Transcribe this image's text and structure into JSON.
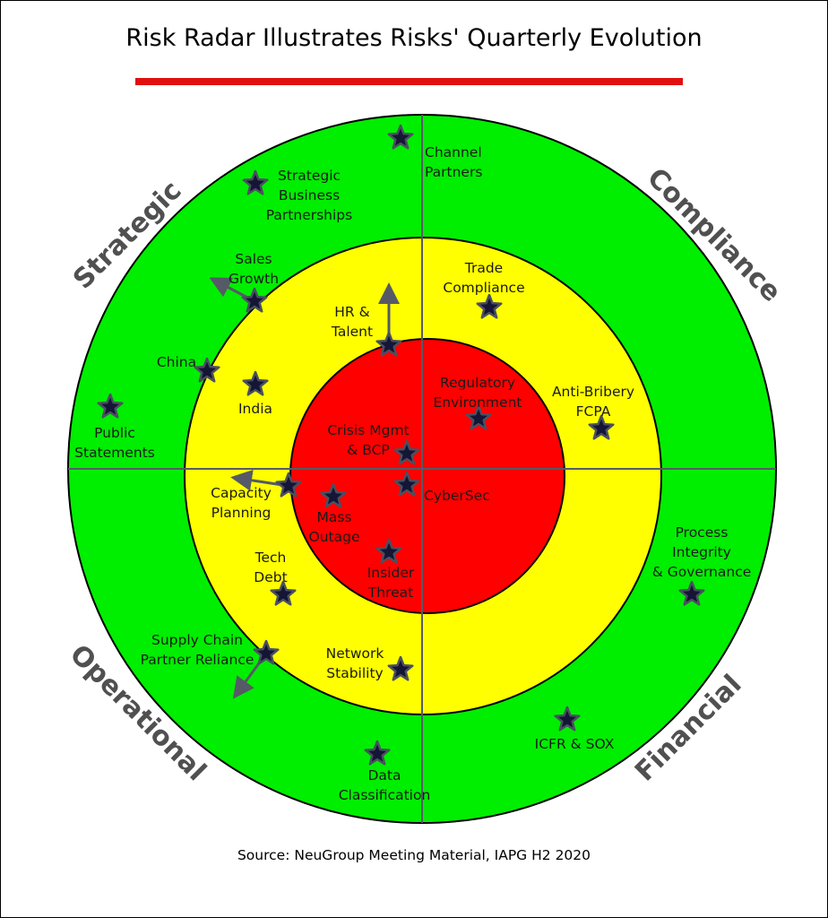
{
  "title": "Risk Radar Illustrates Risks' Quarterly Evolution",
  "source": "Source: NeuGroup Meeting Material, IAPG H2 2020",
  "colors": {
    "outer_ring": "#00ee00",
    "middle_ring": "#ffff00",
    "core": "#ff0000",
    "title_bar": "#e01010",
    "quadrant_label": "#505050",
    "star": "#151535",
    "divider": "#555a66"
  },
  "quadrants": [
    "Strategic",
    "Compliance",
    "Operational",
    "Financial"
  ],
  "risks": [
    {
      "name": [
        "Channel",
        "Partners"
      ],
      "zone": "green",
      "quadrant": "Strategic/Compliance"
    },
    {
      "name": [
        "Strategic",
        "Business",
        "Partnerships"
      ],
      "zone": "green",
      "quadrant": "Strategic"
    },
    {
      "name": [
        "Sales",
        "Growth"
      ],
      "zone": "green/yellow boundary",
      "quadrant": "Strategic",
      "trend": "outward"
    },
    {
      "name": [
        "HR &",
        "Talent"
      ],
      "zone": "yellow/red boundary",
      "quadrant": "Strategic",
      "trend": "outward"
    },
    {
      "name": [
        "China"
      ],
      "zone": "green/yellow boundary",
      "quadrant": "Strategic"
    },
    {
      "name": [
        "India"
      ],
      "zone": "yellow",
      "quadrant": "Strategic"
    },
    {
      "name": [
        "Public",
        "Statements"
      ],
      "zone": "green",
      "quadrant": "Strategic"
    },
    {
      "name": [
        "Trade",
        "Compliance"
      ],
      "zone": "yellow",
      "quadrant": "Compliance"
    },
    {
      "name": [
        "Regulatory",
        "Environment"
      ],
      "zone": "red",
      "quadrant": "Compliance"
    },
    {
      "name": [
        "Anti-Bribery",
        "FCPA"
      ],
      "zone": "yellow",
      "quadrant": "Compliance"
    },
    {
      "name": [
        "Crisis Mgmt",
        "& BCP"
      ],
      "zone": "red",
      "quadrant": "Strategic"
    },
    {
      "name": [
        "CyberSec"
      ],
      "zone": "red",
      "quadrant": "Operational"
    },
    {
      "name": [
        "Capacity",
        "Planning"
      ],
      "zone": "yellow/red boundary",
      "quadrant": "Operational",
      "trend": "outward"
    },
    {
      "name": [
        "Mass",
        "Outage"
      ],
      "zone": "red",
      "quadrant": "Operational"
    },
    {
      "name": [
        "Insider",
        "Threat"
      ],
      "zone": "red",
      "quadrant": "Operational"
    },
    {
      "name": [
        "Tech",
        "Debt"
      ],
      "zone": "yellow",
      "quadrant": "Operational"
    },
    {
      "name": [
        "Supply Chain",
        "Partner Reliance"
      ],
      "zone": "green/yellow boundary",
      "quadrant": "Operational",
      "trend": "outward"
    },
    {
      "name": [
        "Network",
        "Stability"
      ],
      "zone": "yellow",
      "quadrant": "Operational"
    },
    {
      "name": [
        "Process",
        "Integrity",
        "& Governance"
      ],
      "zone": "green",
      "quadrant": "Financial"
    },
    {
      "name": [
        "ICFR & SOX"
      ],
      "zone": "green",
      "quadrant": "Financial"
    },
    {
      "name": [
        "Data",
        "Classification"
      ],
      "zone": "green",
      "quadrant": "Operational"
    }
  ]
}
